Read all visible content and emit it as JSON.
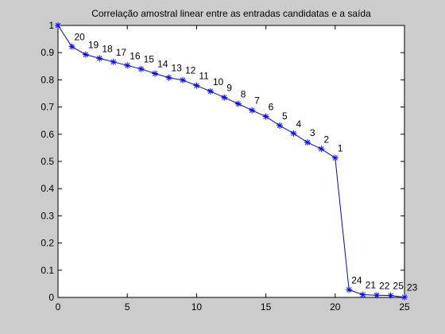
{
  "chart_data": {
    "type": "line",
    "title": "Correlação amostral linear entre as entradas candidatas e a saída",
    "xlabel": "",
    "ylabel": "",
    "xlim": [
      0,
      25
    ],
    "ylim": [
      0,
      1
    ],
    "x_ticks": [
      "0",
      "5",
      "10",
      "15",
      "20",
      "25"
    ],
    "x_tick_values": [
      0,
      5,
      10,
      15,
      20,
      25
    ],
    "y_ticks": [
      "0",
      "0.1",
      "0.2",
      "0.3",
      "0.4",
      "0.5",
      "0.6",
      "0.7",
      "0.8",
      "0.9",
      "1"
    ],
    "y_tick_values": [
      0,
      0.1,
      0.2,
      0.3,
      0.4,
      0.5,
      0.6,
      0.7,
      0.8,
      0.9,
      1
    ],
    "grid": false,
    "legend": "none",
    "line_color": "#0000ff",
    "marker": "asterisk",
    "series": [
      {
        "x": [
          0,
          1,
          2,
          3,
          4,
          5,
          6,
          7,
          8,
          9,
          10,
          11,
          12,
          13,
          14,
          15,
          16,
          17,
          18,
          19,
          20,
          21,
          22,
          23,
          24,
          25
        ],
        "y": [
          1.0,
          0.922,
          0.893,
          0.879,
          0.866,
          0.853,
          0.84,
          0.823,
          0.808,
          0.799,
          0.779,
          0.758,
          0.735,
          0.712,
          0.688,
          0.665,
          0.632,
          0.603,
          0.57,
          0.546,
          0.513,
          0.028,
          0.01,
          0.008,
          0.007,
          0.001
        ],
        "point_labels": [
          "",
          "20",
          "19",
          "18",
          "17",
          "16",
          "15",
          "14",
          "13",
          "12",
          "11",
          "10",
          "9",
          "8",
          "7",
          "6",
          "5",
          "4",
          "3",
          "2",
          "1",
          "24",
          "21",
          "22",
          "25",
          "23"
        ]
      }
    ]
  }
}
